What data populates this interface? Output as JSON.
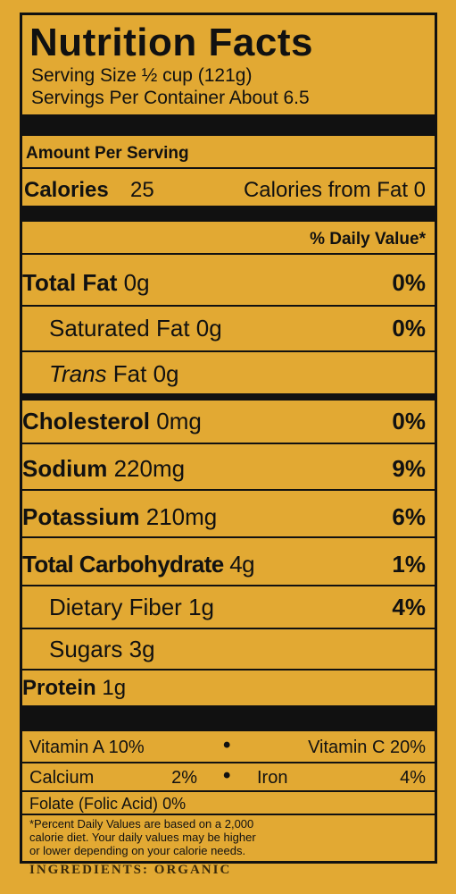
{
  "title": "Nutrition Facts",
  "serving_size": "Serving Size ½ cup (121g)",
  "servings_per_container": "Servings Per Container About 6.5",
  "amount_per_serving": "Amount Per Serving",
  "calories": {
    "label": "Calories",
    "value": "25",
    "from_fat": "Calories from Fat 0"
  },
  "daily_value_header": "% Daily Value*",
  "nutrients": [
    {
      "name": "Total Fat",
      "amount": "0g",
      "dv": "0%"
    },
    {
      "name": "Saturated Fat",
      "amount": "0g",
      "dv": "0%"
    },
    {
      "name_italic": "Trans",
      "name": "Fat",
      "amount": "0g"
    },
    {
      "name": "Cholesterol",
      "amount": "0mg",
      "dv": "0%"
    },
    {
      "name": "Sodium",
      "amount": "220mg",
      "dv": "9%"
    },
    {
      "name": "Potassium",
      "amount": "210mg",
      "dv": "6%"
    },
    {
      "name": "Total Carbohydrate",
      "amount": "4g",
      "dv": "1%"
    },
    {
      "name": "Dietary Fiber",
      "amount": "1g",
      "dv": "4%"
    },
    {
      "name": "Sugars",
      "amount": "3g"
    },
    {
      "name": "Protein",
      "amount": "1g"
    }
  ],
  "vitamins": [
    [
      {
        "name": "Vitamin A",
        "value": "10%"
      },
      {
        "name": "Vitamin C",
        "value": "20%"
      }
    ],
    [
      {
        "name": "Calcium",
        "value": "2%"
      },
      {
        "name": "Iron",
        "value": "4%"
      }
    ],
    [
      {
        "name": "Folate (Folic Acid)",
        "value": "0%"
      }
    ]
  ],
  "footnote": [
    "*Percent Daily Values are based on a 2,000",
    "calorie diet. Your daily values may be higher",
    "or lower depending on your calorie needs."
  ],
  "ingredients": "INGREDIENTS: ORGANIC"
}
